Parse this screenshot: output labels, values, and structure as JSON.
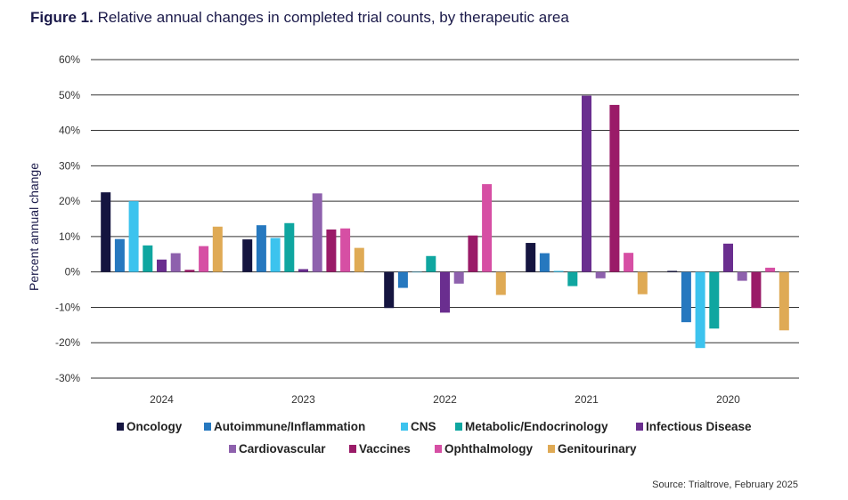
{
  "header": {
    "figure_label": "Figure 1.",
    "title": "Relative annual changes in completed trial counts, by therapeutic area"
  },
  "footer": {
    "source": "Source: Trialtrove, February 2025"
  },
  "chart_data": {
    "type": "bar",
    "title": "Relative annual changes in completed trial counts, by therapeutic area",
    "xlabel": "",
    "ylabel": "Percent annual change",
    "ylim": [
      -30,
      60
    ],
    "yticks": [
      60,
      50,
      40,
      30,
      20,
      10,
      0,
      -10,
      -20,
      -30
    ],
    "ytick_labels": [
      "60%",
      "50%",
      "40%",
      "30%",
      "20%",
      "10%",
      "0%",
      "-10%",
      "-20%",
      "-30%"
    ],
    "grid": true,
    "legend_position": "bottom",
    "categories": [
      "2024",
      "2023",
      "2022",
      "2021",
      "2020"
    ],
    "series": [
      {
        "name": "Oncology",
        "color": "#151540",
        "values": [
          22.5,
          9.2,
          -10.2,
          8.2,
          0.3
        ]
      },
      {
        "name": "Autoimmune/Inflammation",
        "color": "#2678bf",
        "values": [
          9.3,
          13.2,
          -4.5,
          5.3,
          -14.2
        ]
      },
      {
        "name": "CNS",
        "color": "#3cc3ee",
        "values": [
          20.0,
          9.6,
          0.0,
          0.3,
          -21.5
        ]
      },
      {
        "name": "Metabolic/Endocrinology",
        "color": "#0fa6a0",
        "values": [
          7.5,
          13.8,
          4.5,
          -4.0,
          -16.0
        ]
      },
      {
        "name": "Infectious Disease",
        "color": "#6a2e8f",
        "values": [
          3.5,
          0.8,
          -11.5,
          49.8,
          8.0
        ]
      },
      {
        "name": "Cardiovascular",
        "color": "#8e61ad",
        "values": [
          5.3,
          22.2,
          -3.3,
          -1.8,
          -2.5
        ]
      },
      {
        "name": "Vaccines",
        "color": "#9a1b68",
        "values": [
          0.6,
          12.0,
          10.3,
          47.2,
          -10.2
        ]
      },
      {
        "name": "Ophthalmology",
        "color": "#d64fa4",
        "values": [
          7.3,
          12.3,
          24.8,
          5.4,
          1.2
        ]
      },
      {
        "name": "Genitourinary",
        "color": "#dfaa55",
        "values": [
          12.8,
          6.8,
          -6.5,
          -6.3,
          -16.5
        ]
      }
    ]
  }
}
